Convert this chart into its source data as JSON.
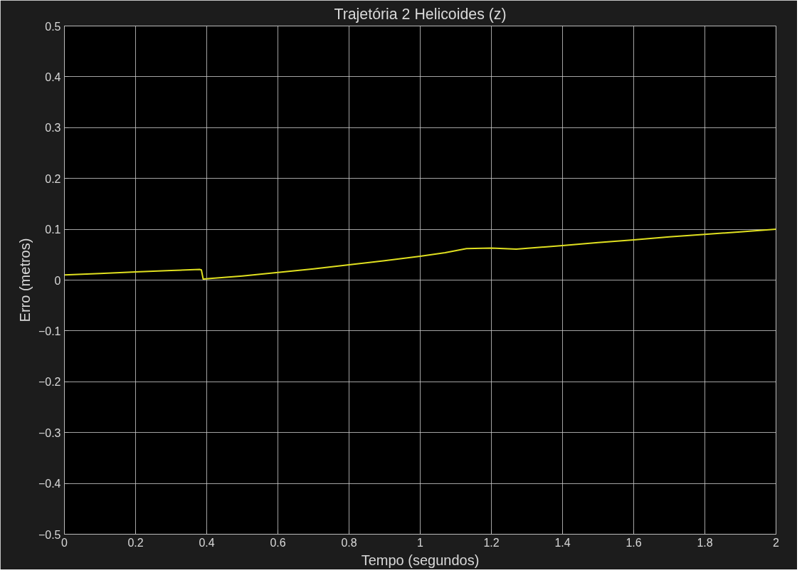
{
  "chart_data": {
    "type": "line",
    "title": "Trajetória 2 Helicoides (z)",
    "xlabel": "Tempo (segundos)",
    "ylabel": "Erro (metros)",
    "x": [
      0,
      0.1,
      0.2,
      0.3,
      0.38,
      0.385,
      0.39,
      0.5,
      0.6,
      0.7,
      0.8,
      0.9,
      1.0,
      1.07,
      1.13,
      1.2,
      1.27,
      1.4,
      1.5,
      1.6,
      1.7,
      1.8,
      1.9,
      2.0
    ],
    "series": [
      {
        "color": "#e0e020",
        "values": [
          0.01,
          0.013,
          0.016,
          0.019,
          0.021,
          0.02,
          0.002,
          0.008,
          0.015,
          0.022,
          0.03,
          0.038,
          0.047,
          0.054,
          0.062,
          0.063,
          0.061,
          0.068,
          0.074,
          0.079,
          0.085,
          0.09,
          0.095,
          0.1
        ]
      }
    ],
    "xlim": [
      0,
      2
    ],
    "ylim": [
      -0.5,
      0.5
    ],
    "xticks": [
      0,
      0.2,
      0.4,
      0.6,
      0.8,
      1,
      1.2,
      1.4,
      1.6,
      1.8,
      2
    ],
    "yticks": [
      -0.5,
      -0.4,
      -0.3,
      -0.2,
      -0.1,
      0,
      0.1,
      0.2,
      0.3,
      0.4,
      0.5
    ],
    "grid": true,
    "line_style": "solid"
  }
}
